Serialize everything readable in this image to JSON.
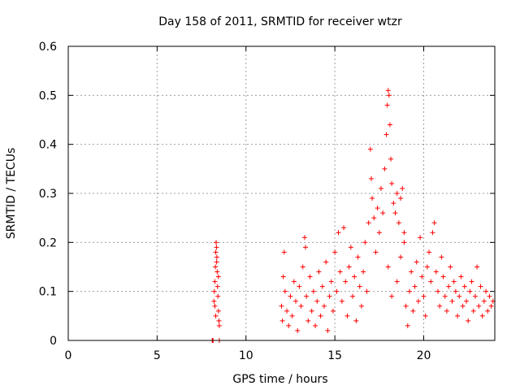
{
  "chart_data": {
    "type": "scatter",
    "title": "Day 158 of 2011, SRMTID for receiver wtzr",
    "xlabel": "GPS time / hours",
    "ylabel": "SRMTID / TECUs",
    "xlim": [
      0,
      24
    ],
    "ylim": [
      0,
      0.6
    ],
    "xticks": [
      0,
      5,
      10,
      15,
      20
    ],
    "xtick_labels": [
      "0",
      "5",
      "10",
      "15",
      "20"
    ],
    "yticks": [
      0,
      0.1,
      0.2,
      0.3,
      0.4,
      0.5,
      0.6
    ],
    "ytick_labels": [
      "0",
      "0.1",
      "0.2",
      "0.3",
      "0.4",
      "0.5",
      "0.6"
    ],
    "grid": true,
    "marker": "+",
    "color": "#ff0000",
    "series": [
      {
        "name": "SRMTID",
        "points": [
          [
            8.1,
            0.0
          ],
          [
            8.12,
            0.0
          ],
          [
            8.15,
            0.0
          ],
          [
            8.2,
            0.08
          ],
          [
            8.22,
            0.1
          ],
          [
            8.25,
            0.12
          ],
          [
            8.28,
            0.15
          ],
          [
            8.3,
            0.18
          ],
          [
            8.32,
            0.2
          ],
          [
            8.34,
            0.19
          ],
          [
            8.36,
            0.17
          ],
          [
            8.38,
            0.14
          ],
          [
            8.4,
            0.11
          ],
          [
            8.42,
            0.09
          ],
          [
            8.45,
            0.06
          ],
          [
            8.48,
            0.04
          ],
          [
            8.5,
            0.03
          ],
          [
            8.3,
            0.05
          ],
          [
            8.25,
            0.07
          ],
          [
            8.35,
            0.16
          ],
          [
            8.45,
            0.13
          ],
          [
            8.5,
            0.0
          ],
          [
            12.0,
            0.07
          ],
          [
            12.05,
            0.04
          ],
          [
            12.1,
            0.13
          ],
          [
            12.15,
            0.18
          ],
          [
            12.2,
            0.1
          ],
          [
            12.3,
            0.06
          ],
          [
            12.4,
            0.03
          ],
          [
            12.5,
            0.09
          ],
          [
            12.6,
            0.05
          ],
          [
            12.7,
            0.12
          ],
          [
            12.8,
            0.08
          ],
          [
            12.9,
            0.02
          ],
          [
            13.0,
            0.11
          ],
          [
            13.1,
            0.07
          ],
          [
            13.2,
            0.15
          ],
          [
            13.3,
            0.21
          ],
          [
            13.35,
            0.19
          ],
          [
            13.4,
            0.09
          ],
          [
            13.5,
            0.04
          ],
          [
            13.6,
            0.13
          ],
          [
            13.7,
            0.06
          ],
          [
            13.8,
            0.1
          ],
          [
            13.9,
            0.03
          ],
          [
            14.0,
            0.08
          ],
          [
            14.1,
            0.14
          ],
          [
            14.2,
            0.05
          ],
          [
            14.3,
            0.11
          ],
          [
            14.4,
            0.07
          ],
          [
            14.5,
            0.16
          ],
          [
            14.6,
            0.02
          ],
          [
            14.7,
            0.09
          ],
          [
            14.8,
            0.12
          ],
          [
            14.9,
            0.06
          ],
          [
            15.0,
            0.18
          ],
          [
            15.1,
            0.1
          ],
          [
            15.2,
            0.22
          ],
          [
            15.3,
            0.14
          ],
          [
            15.4,
            0.08
          ],
          [
            15.5,
            0.23
          ],
          [
            15.6,
            0.12
          ],
          [
            15.7,
            0.05
          ],
          [
            15.8,
            0.15
          ],
          [
            15.9,
            0.19
          ],
          [
            16.0,
            0.09
          ],
          [
            16.1,
            0.13
          ],
          [
            16.2,
            0.04
          ],
          [
            16.3,
            0.17
          ],
          [
            16.4,
            0.11
          ],
          [
            16.5,
            0.07
          ],
          [
            16.6,
            0.14
          ],
          [
            16.7,
            0.2
          ],
          [
            16.8,
            0.1
          ],
          [
            16.9,
            0.24
          ],
          [
            17.0,
            0.39
          ],
          [
            17.05,
            0.33
          ],
          [
            17.1,
            0.29
          ],
          [
            17.2,
            0.25
          ],
          [
            17.3,
            0.18
          ],
          [
            17.4,
            0.27
          ],
          [
            17.5,
            0.22
          ],
          [
            17.6,
            0.31
          ],
          [
            17.7,
            0.26
          ],
          [
            17.8,
            0.35
          ],
          [
            17.9,
            0.42
          ],
          [
            17.95,
            0.48
          ],
          [
            18.0,
            0.51
          ],
          [
            18.05,
            0.5
          ],
          [
            18.1,
            0.44
          ],
          [
            18.15,
            0.37
          ],
          [
            18.2,
            0.32
          ],
          [
            18.3,
            0.28
          ],
          [
            18.4,
            0.26
          ],
          [
            18.5,
            0.3
          ],
          [
            18.6,
            0.24
          ],
          [
            18.7,
            0.29
          ],
          [
            18.8,
            0.31
          ],
          [
            18.9,
            0.2
          ],
          [
            18.0,
            0.15
          ],
          [
            18.2,
            0.09
          ],
          [
            18.5,
            0.12
          ],
          [
            18.7,
            0.17
          ],
          [
            18.9,
            0.22
          ],
          [
            19.0,
            0.07
          ],
          [
            19.1,
            0.03
          ],
          [
            19.2,
            0.1
          ],
          [
            19.3,
            0.14
          ],
          [
            19.4,
            0.06
          ],
          [
            19.5,
            0.11
          ],
          [
            19.6,
            0.16
          ],
          [
            19.7,
            0.08
          ],
          [
            19.8,
            0.21
          ],
          [
            19.9,
            0.13
          ],
          [
            20.0,
            0.09
          ],
          [
            20.1,
            0.05
          ],
          [
            20.2,
            0.15
          ],
          [
            20.3,
            0.18
          ],
          [
            20.4,
            0.12
          ],
          [
            20.5,
            0.22
          ],
          [
            20.6,
            0.24
          ],
          [
            20.7,
            0.14
          ],
          [
            20.8,
            0.1
          ],
          [
            20.9,
            0.07
          ],
          [
            21.0,
            0.17
          ],
          [
            21.1,
            0.13
          ],
          [
            21.2,
            0.09
          ],
          [
            21.3,
            0.06
          ],
          [
            21.4,
            0.11
          ],
          [
            21.5,
            0.15
          ],
          [
            21.6,
            0.08
          ],
          [
            21.7,
            0.12
          ],
          [
            21.8,
            0.1
          ],
          [
            21.9,
            0.05
          ],
          [
            22.0,
            0.09
          ],
          [
            22.1,
            0.13
          ],
          [
            22.2,
            0.07
          ],
          [
            22.3,
            0.11
          ],
          [
            22.4,
            0.08
          ],
          [
            22.5,
            0.04
          ],
          [
            22.6,
            0.1
          ],
          [
            22.7,
            0.12
          ],
          [
            22.8,
            0.06
          ],
          [
            22.9,
            0.09
          ],
          [
            23.0,
            0.15
          ],
          [
            23.1,
            0.07
          ],
          [
            23.2,
            0.11
          ],
          [
            23.3,
            0.05
          ],
          [
            23.4,
            0.08
          ],
          [
            23.5,
            0.1
          ],
          [
            23.6,
            0.06
          ],
          [
            23.7,
            0.09
          ],
          [
            23.8,
            0.07
          ],
          [
            23.9,
            0.08
          ]
        ]
      }
    ]
  }
}
